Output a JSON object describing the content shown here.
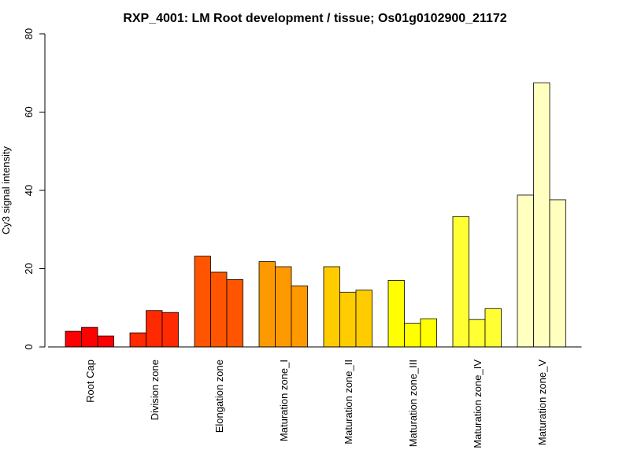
{
  "chart_data": {
    "type": "bar",
    "title": "RXP_4001: LM Root development / tissue; Os01g0102900_21172",
    "xlabel": "",
    "ylabel": "Cy3 signal intensity",
    "ylim": [
      0,
      80
    ],
    "yticks": [
      0,
      20,
      40,
      60,
      80
    ],
    "categories": [
      {
        "label": "Root Cap",
        "color": "#FF0000",
        "values": [
          4.0,
          5.0,
          2.8
        ]
      },
      {
        "label": "Division zone",
        "color": "#FF2A00",
        "values": [
          3.6,
          9.3,
          8.8
        ]
      },
      {
        "label": "Elongation zone",
        "color": "#FF5500",
        "values": [
          23.2,
          19.1,
          17.2
        ]
      },
      {
        "label": "Maturation zone_I",
        "color": "#FF9900",
        "values": [
          21.8,
          20.5,
          15.6
        ]
      },
      {
        "label": "Maturation zone_II",
        "color": "#FFCC00",
        "values": [
          20.5,
          14.0,
          14.5
        ]
      },
      {
        "label": "Maturation zone_III",
        "color": "#FFFF00",
        "values": [
          17.0,
          6.0,
          7.2
        ]
      },
      {
        "label": "Maturation zone_IV",
        "color": "#FFFF33",
        "values": [
          33.3,
          7.0,
          9.8
        ]
      },
      {
        "label": "Maturation zone_V",
        "color": "#FFFFBF",
        "values": [
          38.8,
          67.5,
          37.6
        ]
      }
    ]
  }
}
